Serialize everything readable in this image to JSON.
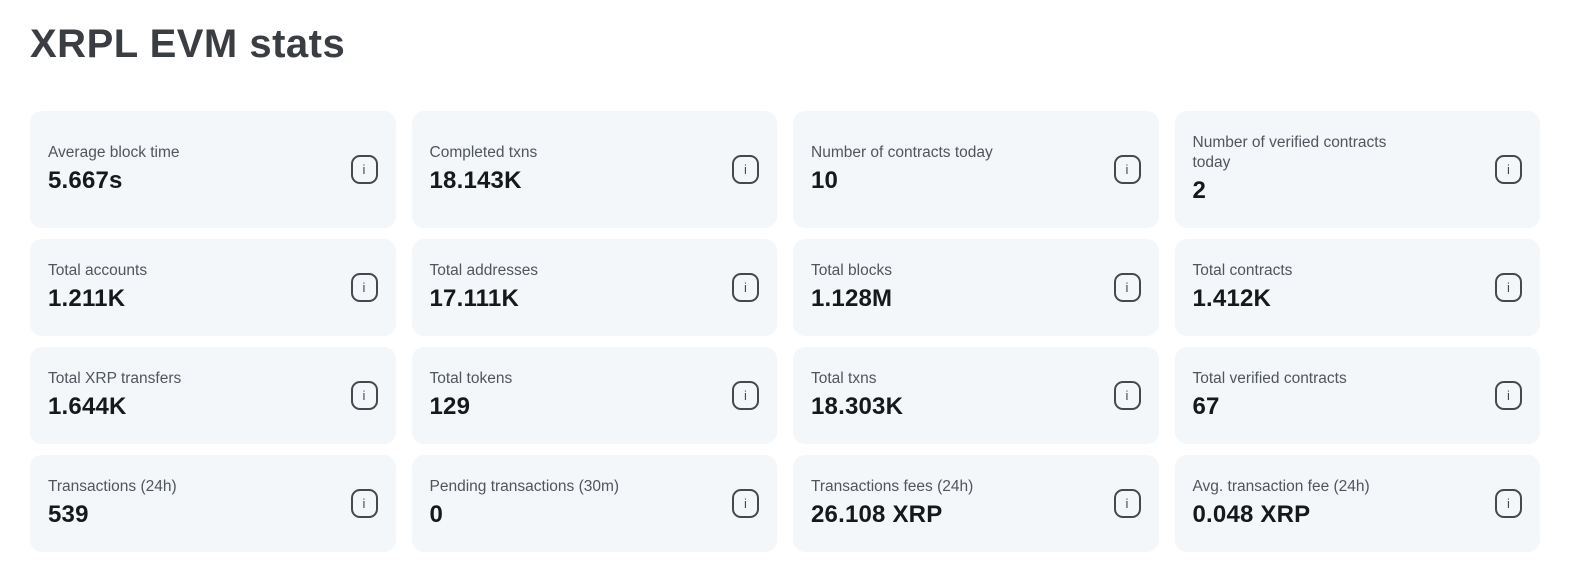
{
  "page": {
    "title": "XRPL EVM stats"
  },
  "colors": {
    "card_background": "#f3f7fa",
    "title_text": "#3a3d42",
    "label_text": "#51555c",
    "value_text": "#17181a",
    "icon_stroke": "#45484d"
  },
  "info_icon": {
    "name": "info-icon",
    "glyph": "i"
  },
  "cards": [
    {
      "label": "Average block time",
      "value": "5.667s"
    },
    {
      "label": "Completed txns",
      "value": "18.143K"
    },
    {
      "label": "Number of contracts today",
      "value": "10"
    },
    {
      "label": "Number of verified contracts today",
      "value": "2"
    },
    {
      "label": "Total accounts",
      "value": "1.211K"
    },
    {
      "label": "Total addresses",
      "value": "17.111K"
    },
    {
      "label": "Total blocks",
      "value": "1.128M"
    },
    {
      "label": "Total contracts",
      "value": "1.412K"
    },
    {
      "label": "Total XRP transfers",
      "value": "1.644K"
    },
    {
      "label": "Total tokens",
      "value": "129"
    },
    {
      "label": "Total txns",
      "value": "18.303K"
    },
    {
      "label": "Total verified contracts",
      "value": "67"
    },
    {
      "label": "Transactions (24h)",
      "value": "539"
    },
    {
      "label": "Pending transactions (30m)",
      "value": "0"
    },
    {
      "label": "Transactions fees (24h)",
      "value": "26.108 XRP"
    },
    {
      "label": "Avg. transaction fee (24h)",
      "value": "0.048 XRP"
    }
  ]
}
